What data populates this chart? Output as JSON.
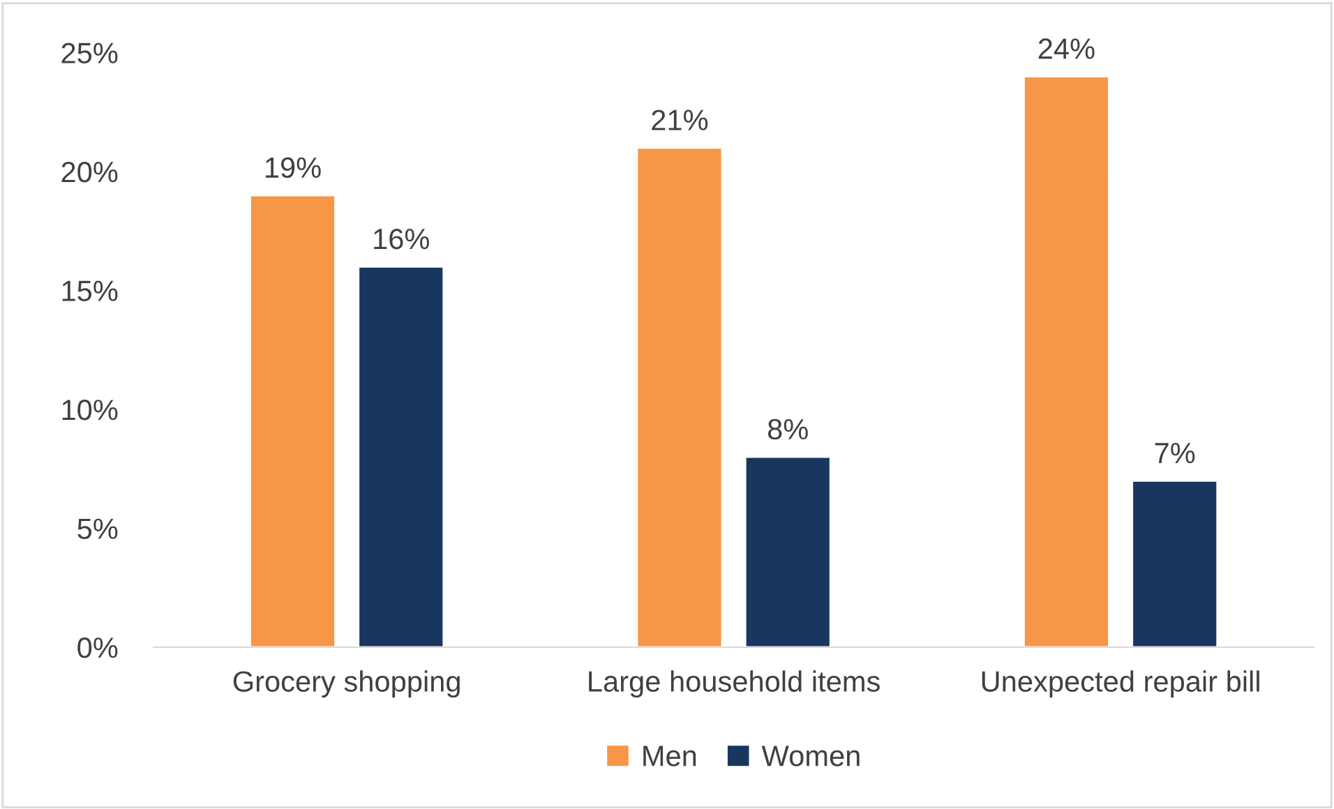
{
  "chart_data": {
    "type": "bar",
    "categories": [
      "Grocery shopping",
      "Large household items",
      "Unexpected repair bill"
    ],
    "series": [
      {
        "name": "Men",
        "color": "#f79646",
        "values": [
          19,
          21,
          24
        ]
      },
      {
        "name": "Women",
        "color": "#17375e",
        "values": [
          16,
          8,
          7
        ]
      }
    ],
    "ylim": [
      0,
      25
    ],
    "yticks": [
      {
        "value": 0,
        "label": "0%"
      },
      {
        "value": 5,
        "label": "5%"
      },
      {
        "value": 10,
        "label": "10%"
      },
      {
        "value": 15,
        "label": "15%"
      },
      {
        "value": 20,
        "label": "20%"
      },
      {
        "value": 25,
        "label": "25%"
      }
    ],
    "value_labels": [
      [
        "19%",
        "21%",
        "24%"
      ],
      [
        "16%",
        "8%",
        "7%"
      ]
    ],
    "grid": false,
    "legend": "bottom"
  }
}
